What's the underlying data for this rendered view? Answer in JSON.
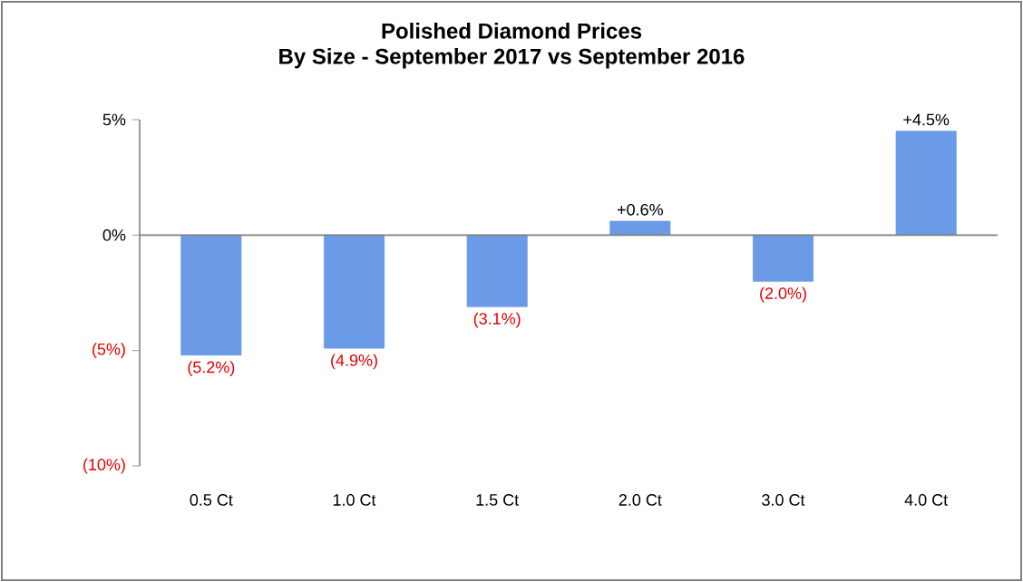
{
  "chart_data": {
    "type": "bar",
    "title": "Polished Diamond Prices\nBy Size - September 2017 vs September 2016",
    "categories": [
      "0.5 Ct",
      "1.0 Ct",
      "1.5 Ct",
      "2.0 Ct",
      "3.0 Ct",
      "4.0 Ct"
    ],
    "values": [
      -5.2,
      -4.9,
      -3.1,
      0.6,
      -2.0,
      4.5
    ],
    "value_labels": [
      "(5.2%)",
      "(4.9%)",
      "(3.1%)",
      "+0.6%",
      "(2.0%)",
      "+4.5%"
    ],
    "color": "#6b9be6",
    "ylim": [
      -10,
      5
    ],
    "yticks": [
      {
        "value": -10,
        "label": "(10%)"
      },
      {
        "value": -5,
        "label": "(5%)"
      },
      {
        "value": 0,
        "label": "0%"
      },
      {
        "value": 5,
        "label": "5%"
      }
    ],
    "ref_lines": [
      {
        "axis": "y",
        "value": 0,
        "color": "#808080"
      }
    ]
  }
}
